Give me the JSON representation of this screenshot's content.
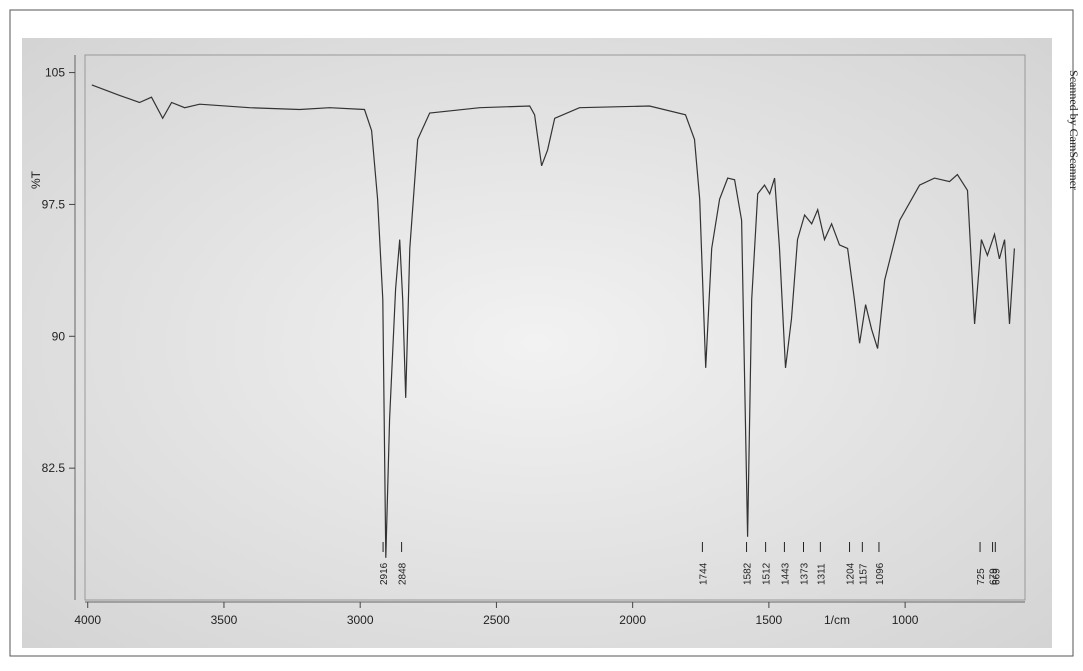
{
  "chart_data": {
    "type": "line",
    "ylabel": "%T",
    "xlabel": "1/cm",
    "watermark": "Scanned by CamScanner",
    "xlim": [
      4010,
      560
    ],
    "ylim": [
      75,
      106
    ],
    "xticks": [
      4000,
      3500,
      3000,
      2500,
      2000,
      1500,
      1000
    ],
    "yticks": [
      105,
      97.5,
      90,
      82.5
    ],
    "series": [
      {
        "color": "#333333",
        "x": [
          3985,
          3883,
          3810,
          3766,
          3725,
          3692,
          3644,
          3589,
          3406,
          3222,
          3112,
          2984,
          2958,
          2936,
          2917,
          2906,
          2892,
          2870,
          2855,
          2844,
          2833,
          2818,
          2789,
          2745,
          2561,
          2378,
          2360,
          2334,
          2312,
          2286,
          2195,
          1938,
          1806,
          1773,
          1754,
          1732,
          1710,
          1681,
          1651,
          1626,
          1600,
          1578,
          1563,
          1541,
          1516,
          1497,
          1479,
          1461,
          1439,
          1417,
          1395,
          1369,
          1343,
          1321,
          1296,
          1270,
          1241,
          1211,
          1186,
          1167,
          1145,
          1123,
          1101,
          1075,
          1020,
          947,
          892,
          837,
          808,
          771,
          745,
          720,
          698,
          672,
          654,
          635,
          617,
          599
        ],
        "values": [
          104.3,
          103.7,
          103.3,
          103.6,
          102.4,
          103.3,
          103,
          103.2,
          103,
          102.9,
          103,
          102.9,
          101.7,
          97.8,
          92.1,
          77.4,
          85.3,
          92.7,
          95.5,
          92.1,
          86.5,
          95,
          101.2,
          102.7,
          103,
          103.1,
          102.6,
          99.7,
          100.6,
          102.4,
          103,
          103.1,
          102.6,
          101.2,
          97.8,
          88.2,
          95,
          97.8,
          99,
          98.9,
          96.6,
          78.6,
          92.1,
          98.1,
          98.6,
          98.1,
          99,
          95,
          88.2,
          91,
          95.5,
          96.9,
          96.4,
          97.2,
          95.5,
          96.4,
          95.2,
          95,
          92.1,
          89.6,
          91.8,
          90.4,
          89.3,
          93.2,
          96.6,
          98.6,
          99,
          98.8,
          99.2,
          98.3,
          90.7,
          95.5,
          94.6,
          95.8,
          94.4,
          95.5,
          90.7,
          95
        ]
      }
    ],
    "annotations": [
      {
        "text": "2916",
        "x": 2916
      },
      {
        "text": "2848",
        "x": 2848
      },
      {
        "text": "1744",
        "x": 1744
      },
      {
        "text": "1582",
        "x": 1582
      },
      {
        "text": "1512",
        "x": 1512
      },
      {
        "text": "1443",
        "x": 1443
      },
      {
        "text": "1373",
        "x": 1373
      },
      {
        "text": "1311",
        "x": 1311
      },
      {
        "text": "1204",
        "x": 1204
      },
      {
        "text": "1157",
        "x": 1157
      },
      {
        "text": "1096",
        "x": 1096
      },
      {
        "text": "725",
        "x": 725
      },
      {
        "text": "679",
        "x": 679
      },
      {
        "text": "669",
        "x": 669
      }
    ]
  }
}
